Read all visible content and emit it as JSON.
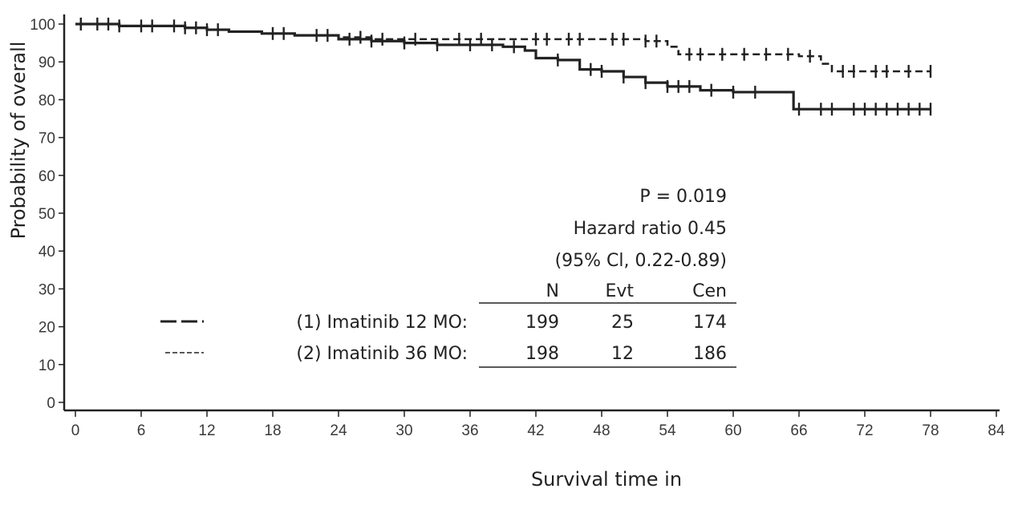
{
  "chart_data": {
    "type": "line",
    "title": "",
    "xlabel": "Survival time in",
    "ylabel": "Probability of overall",
    "xlim": [
      0,
      84
    ],
    "ylim": [
      0,
      100
    ],
    "x_ticks": [
      "0",
      "6",
      "12",
      "18",
      "24",
      "30",
      "36",
      "42",
      "48",
      "54",
      "60",
      "66",
      "72",
      "78",
      "84"
    ],
    "y_ticks": [
      "0",
      "10",
      "20",
      "30",
      "40",
      "50",
      "60",
      "70",
      "80",
      "90",
      "100"
    ],
    "grid": false,
    "legend_position": "bottom-left",
    "annotations": {
      "p_value": "P = 0.019",
      "hazard_ratio": "Hazard ratio 0.45",
      "ci": "(95% Cl, 0.22-0.89)"
    },
    "table": {
      "headers": [
        "N",
        "Evt",
        "Cen"
      ],
      "rows": [
        {
          "label": "(1) Imatinib 12 MO:",
          "n": "199",
          "evt": "25",
          "cen": "174"
        },
        {
          "label": "(2) Imatinib 36 MO:",
          "n": "198",
          "evt": "12",
          "cen": "186"
        }
      ]
    },
    "series": [
      {
        "name": "(1) Imatinib 12 MO",
        "style": "solid",
        "x": [
          0,
          4,
          10,
          12,
          14,
          17,
          20,
          24,
          27,
          30,
          33,
          36,
          39,
          41,
          42,
          44,
          46,
          48,
          50,
          52,
          54,
          57,
          60,
          63,
          65,
          65.5,
          70,
          75,
          78
        ],
        "y": [
          100,
          99.5,
          99,
          98.5,
          98,
          97.5,
          97,
          96,
          95.5,
          95,
          94.5,
          94.5,
          94,
          93,
          91,
          90.5,
          88,
          87.5,
          86,
          84.5,
          83.5,
          82.5,
          82,
          82,
          82,
          77.5,
          77.5,
          77.5,
          77.5
        ],
        "censor_x": [
          0.5,
          2,
          4,
          6,
          10,
          12,
          18,
          22,
          25,
          27,
          30,
          33,
          36,
          38,
          40,
          44,
          47,
          48,
          50,
          52,
          54,
          55,
          56,
          58,
          60,
          62,
          66,
          68,
          69,
          71,
          72,
          73,
          74,
          75,
          76,
          77,
          78
        ]
      },
      {
        "name": "(2) Imatinib 36 MO",
        "style": "dashed",
        "x": [
          0,
          4,
          10,
          12,
          14,
          17,
          20,
          24,
          27,
          30,
          33,
          36,
          40,
          44,
          48,
          52,
          54,
          55,
          60,
          63,
          64,
          66,
          68,
          69,
          72,
          78
        ],
        "y": [
          100,
          99.5,
          99,
          98.5,
          98,
          97.5,
          97,
          96.5,
          96,
          96,
          96,
          96,
          96,
          96,
          96,
          95.5,
          94,
          92,
          92,
          92,
          92,
          91.5,
          89.5,
          87.5,
          87.5,
          87.5
        ],
        "censor_x": [
          0.5,
          3,
          7,
          9,
          11,
          13,
          19,
          23,
          26,
          28,
          31,
          35,
          37,
          42,
          43,
          45,
          46,
          49,
          50,
          52,
          53,
          56,
          57,
          59,
          61,
          63,
          65,
          67,
          70,
          71,
          73,
          74,
          76,
          78
        ]
      }
    ],
    "legend": {
      "items": [
        {
          "label": "(1) Imatinib 12 MO:",
          "style": "solid"
        },
        {
          "label": "(2) Imatinib 36 MO:",
          "style": "dashed"
        }
      ]
    },
    "colors": {
      "line": "#222222",
      "axis": "#222222"
    }
  }
}
